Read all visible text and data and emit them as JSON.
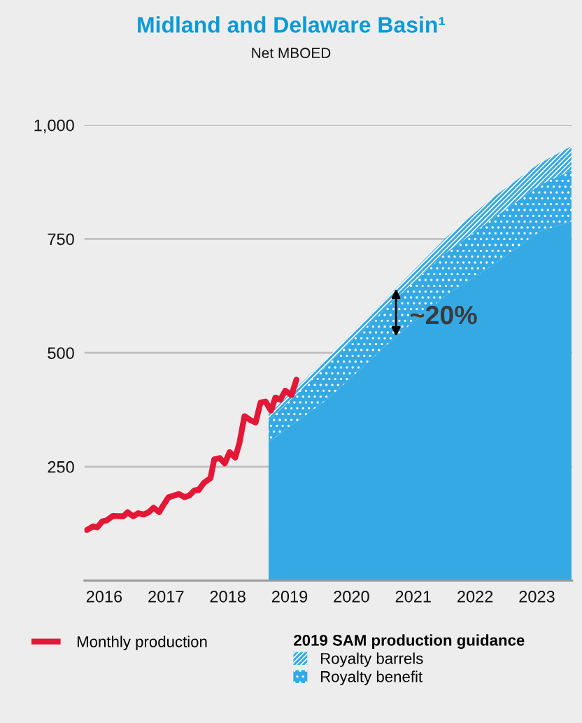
{
  "chart_data": {
    "type": "area",
    "title": "Midland and Delaware Basin¹",
    "subtitle": "Net MBOED",
    "stacked": true,
    "legend": "bottom",
    "legend_title": "2019 SAM production guidance",
    "grid": "y",
    "xlim": [
      2016.18,
      2024.07
    ],
    "xticks": [
      {
        "value": 2016.5,
        "label": "2016"
      },
      {
        "value": 2017.5,
        "label": "2017"
      },
      {
        "value": 2018.5,
        "label": "2018"
      },
      {
        "value": 2019.5,
        "label": "2019"
      },
      {
        "value": 2020.5,
        "label": "2020"
      },
      {
        "value": 2021.5,
        "label": "2021"
      },
      {
        "value": 2022.5,
        "label": "2022"
      },
      {
        "value": 2023.5,
        "label": "2023"
      }
    ],
    "ylim": [
      0,
      1000
    ],
    "yticks": [
      250,
      500,
      750,
      {
        "value": 1000,
        "label": "1,000"
      }
    ],
    "series": [
      {
        "color": "#34a9e4",
        "x": [
          2019.16,
          2020.14,
          2021.22,
          2022.03,
          2022.78,
          2023.54,
          2024.06
        ],
        "values": [
          304,
          401,
          536,
          626,
          692,
          766,
          789
        ]
      },
      {
        "name": "Royalty benefit",
        "color": "#34a9e4",
        "x": [
          2019.16,
          2020.14,
          2021.22,
          2022.03,
          2022.78,
          2023.54,
          2024.06
        ],
        "values": [
          47,
          77,
          84,
          94,
          102,
          102,
          112
        ]
      },
      {
        "name": "Royalty barrels",
        "color": "#34a9e4",
        "x": [
          2019.16,
          2020.14,
          2021.22,
          2022.03,
          2022.78,
          2023.54,
          2024.06
        ],
        "values": [
          14,
          15,
          21,
          33,
          46,
          48,
          53
        ]
      },
      {
        "name": "Monthly production",
        "type": "line",
        "color": "#e31837",
        "line_style": "solid",
        "x": [
          2016.22,
          2016.32,
          2016.39,
          2016.47,
          2016.54,
          2016.64,
          2016.81,
          2016.88,
          2016.97,
          2017.05,
          2017.14,
          2017.22,
          2017.3,
          2017.39,
          2017.46,
          2017.54,
          2017.71,
          2017.8,
          2017.88,
          2017.96,
          2018.03,
          2018.11,
          2018.22,
          2018.28,
          2018.37,
          2018.45,
          2018.53,
          2018.62,
          2018.69,
          2018.77,
          2018.87,
          2018.95,
          2019.03,
          2019.11,
          2019.2,
          2019.27,
          2019.35,
          2019.43,
          2019.53,
          2019.61
        ],
        "values": [
          111,
          119,
          117,
          130,
          132,
          142,
          141,
          150,
          141,
          148,
          145,
          150,
          160,
          150,
          166,
          183,
          190,
          183,
          187,
          198,
          199,
          214,
          225,
          266,
          269,
          257,
          282,
          270,
          303,
          361,
          352,
          347,
          391,
          393,
          373,
          402,
          397,
          417,
          407,
          441
        ]
      }
    ],
    "annotations": [
      "~20%"
    ]
  }
}
